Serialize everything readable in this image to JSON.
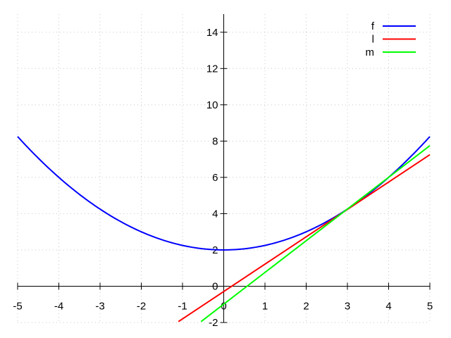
{
  "chart_data": {
    "type": "line",
    "title": "",
    "xlabel": "",
    "ylabel": "",
    "xlim": [
      -5,
      5
    ],
    "ylim": [
      -2,
      15
    ],
    "grid": true,
    "legend": "top-right",
    "x_ticks": [
      -5,
      -4,
      -3,
      -2,
      -1,
      0,
      1,
      2,
      3,
      4,
      5
    ],
    "x_tick_labels": [
      "-5",
      "-4",
      "-3",
      "-2",
      "-1",
      "0",
      "1",
      "2",
      "3",
      "4",
      "5"
    ],
    "y_ticks": [
      -2,
      0,
      2,
      4,
      6,
      8,
      10,
      12,
      14
    ],
    "y_tick_labels": [
      "-2",
      "0",
      "2",
      "4",
      "6",
      "8",
      "10",
      "12",
      "14"
    ],
    "series": [
      {
        "name": "f",
        "color": "#0000ff",
        "x": [
          -5,
          -4.5,
          -4,
          -3.5,
          -3,
          -2.5,
          -2,
          -1.5,
          -1,
          -0.5,
          0,
          0.5,
          1,
          1.5,
          2,
          2.5,
          3,
          3.5,
          4,
          4.5,
          5
        ],
        "y": [
          8.25,
          7.06,
          6.0,
          5.06,
          4.25,
          3.56,
          3.0,
          2.56,
          2.25,
          2.06,
          2.0,
          2.06,
          2.25,
          2.56,
          3.0,
          3.56,
          4.25,
          5.06,
          6.0,
          7.06,
          8.25
        ]
      },
      {
        "name": "l",
        "color": "#ff0000",
        "x": [
          -1.1,
          5
        ],
        "y": [
          -1.95,
          7.25
        ]
      },
      {
        "name": "m",
        "color": "#00ff00",
        "x": [
          -0.55,
          5
        ],
        "y": [
          -1.95,
          7.75
        ]
      }
    ]
  }
}
